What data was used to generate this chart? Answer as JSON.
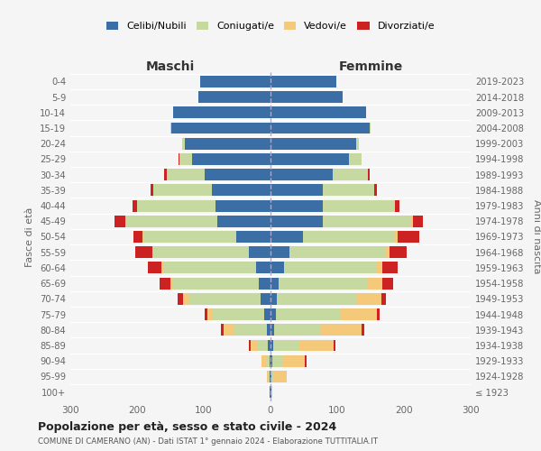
{
  "age_groups": [
    "100+",
    "95-99",
    "90-94",
    "85-89",
    "80-84",
    "75-79",
    "70-74",
    "65-69",
    "60-64",
    "55-59",
    "50-54",
    "45-49",
    "40-44",
    "35-39",
    "30-34",
    "25-29",
    "20-24",
    "15-19",
    "10-14",
    "5-9",
    "0-4"
  ],
  "birth_years": [
    "≤ 1923",
    "1924-1928",
    "1929-1933",
    "1934-1938",
    "1939-1943",
    "1944-1948",
    "1949-1953",
    "1954-1958",
    "1959-1963",
    "1964-1968",
    "1969-1973",
    "1974-1978",
    "1979-1983",
    "1984-1988",
    "1989-1993",
    "1994-1998",
    "1999-2003",
    "2004-2008",
    "2009-2013",
    "2014-2018",
    "2019-2023"
  ],
  "colors": {
    "celibi": "#3a6ea5",
    "coniugati": "#c5d9a0",
    "vedovi": "#f5c97a",
    "divorziati": "#cc2222"
  },
  "males": {
    "celibi": [
      1,
      1,
      2,
      4,
      6,
      10,
      15,
      18,
      22,
      32,
      52,
      80,
      82,
      88,
      98,
      118,
      128,
      148,
      146,
      108,
      106
    ],
    "coniugati": [
      0,
      2,
      4,
      16,
      48,
      78,
      108,
      128,
      138,
      143,
      138,
      138,
      118,
      88,
      58,
      18,
      4,
      2,
      0,
      0,
      0
    ],
    "vedovi": [
      0,
      2,
      8,
      10,
      16,
      7,
      8,
      4,
      4,
      2,
      2,
      0,
      0,
      0,
      0,
      0,
      0,
      0,
      0,
      0,
      0
    ],
    "divorziati": [
      0,
      0,
      0,
      2,
      4,
      4,
      8,
      16,
      20,
      26,
      14,
      16,
      7,
      4,
      4,
      2,
      0,
      0,
      0,
      0,
      0
    ]
  },
  "females": {
    "nubili": [
      1,
      2,
      3,
      4,
      6,
      8,
      10,
      12,
      20,
      28,
      48,
      78,
      78,
      78,
      93,
      118,
      128,
      148,
      143,
      108,
      98
    ],
    "coniugate": [
      0,
      4,
      16,
      38,
      68,
      98,
      118,
      133,
      138,
      143,
      138,
      133,
      108,
      78,
      53,
      18,
      4,
      2,
      0,
      0,
      0
    ],
    "vedove": [
      2,
      18,
      33,
      53,
      63,
      53,
      38,
      23,
      10,
      7,
      4,
      2,
      0,
      0,
      0,
      0,
      0,
      0,
      0,
      0,
      0
    ],
    "divorziate": [
      0,
      0,
      2,
      2,
      4,
      4,
      7,
      16,
      23,
      26,
      33,
      16,
      7,
      4,
      2,
      0,
      0,
      0,
      0,
      0,
      0
    ]
  },
  "title": "Popolazione per età, sesso e stato civile - 2024",
  "subtitle": "COMUNE DI CAMERANO (AN) - Dati ISTAT 1° gennaio 2024 - Elaborazione TUTTITALIA.IT",
  "xlabel_left": "Maschi",
  "xlabel_right": "Femmine",
  "ylabel_left": "Fasce di età",
  "ylabel_right": "Anni di nascita",
  "xlim": 300,
  "legend_labels": [
    "Celibi/Nubili",
    "Coniugati/e",
    "Vedovi/e",
    "Divorziati/e"
  ],
  "background_color": "#f5f5f5"
}
